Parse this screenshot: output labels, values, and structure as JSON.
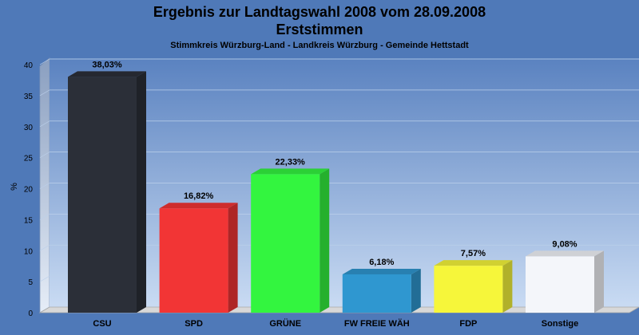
{
  "chart_data": {
    "type": "bar",
    "title": "Ergebnis zur Landtagswahl 2008 vom 28.09.2008",
    "title_line2": "Erststimmen",
    "subtitle": "Stimmkreis Würzburg-Land - Landkreis Würzburg - Gemeinde Hettstadt",
    "ylabel": "%",
    "xlabel": "",
    "ylim": [
      0,
      40
    ],
    "yticks": [
      0,
      5,
      10,
      15,
      20,
      25,
      30,
      35,
      40
    ],
    "grid": true,
    "categories": [
      "CSU",
      "SPD",
      "GRÜNE",
      "FW FREIE WÄH",
      "FDP",
      "Sonstige"
    ],
    "values": [
      38.03,
      16.82,
      22.33,
      6.18,
      7.57,
      9.08
    ],
    "value_labels": [
      "38,03%",
      "16,82%",
      "22,33%",
      "6,18%",
      "7,57%",
      "9,08%"
    ],
    "colors": [
      "#2b2f38",
      "#f23535",
      "#33f53f",
      "#2f97d0",
      "#f6f63a",
      "#f4f6fa"
    ]
  }
}
